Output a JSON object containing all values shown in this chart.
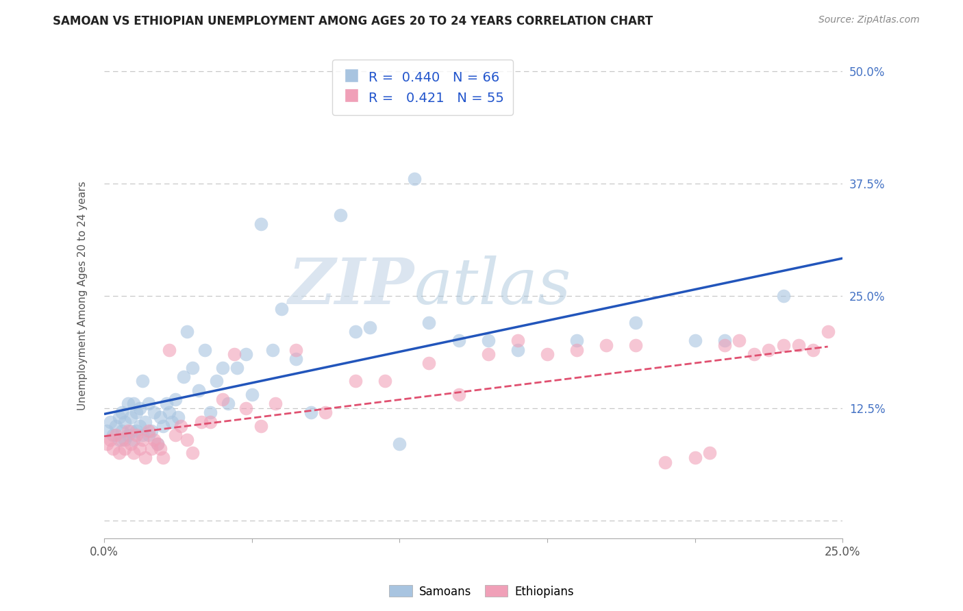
{
  "title": "SAMOAN VS ETHIOPIAN UNEMPLOYMENT AMONG AGES 20 TO 24 YEARS CORRELATION CHART",
  "source": "Source: ZipAtlas.com",
  "ylabel": "Unemployment Among Ages 20 to 24 years",
  "legend_samoans_R": "0.440",
  "legend_samoans_N": "66",
  "legend_ethiopians_R": "0.421",
  "legend_ethiopians_N": "55",
  "samoan_color": "#a8c4e0",
  "ethiopian_color": "#f0a0b8",
  "samoan_line_color": "#2255bb",
  "ethiopian_line_color": "#e05070",
  "background_color": "#ffffff",
  "grid_color": "#c8c8c8",
  "watermark_zip": "ZIP",
  "watermark_atlas": "atlas",
  "samoan_x": [
    0.001,
    0.002,
    0.003,
    0.004,
    0.005,
    0.005,
    0.006,
    0.006,
    0.007,
    0.007,
    0.008,
    0.008,
    0.009,
    0.009,
    0.01,
    0.01,
    0.011,
    0.011,
    0.012,
    0.012,
    0.013,
    0.013,
    0.014,
    0.015,
    0.015,
    0.016,
    0.017,
    0.018,
    0.019,
    0.02,
    0.021,
    0.022,
    0.023,
    0.024,
    0.025,
    0.027,
    0.028,
    0.03,
    0.032,
    0.034,
    0.036,
    0.038,
    0.04,
    0.042,
    0.045,
    0.048,
    0.05,
    0.053,
    0.057,
    0.06,
    0.065,
    0.07,
    0.08,
    0.085,
    0.09,
    0.1,
    0.105,
    0.11,
    0.12,
    0.13,
    0.14,
    0.16,
    0.18,
    0.2,
    0.21,
    0.23
  ],
  "samoan_y": [
    0.1,
    0.11,
    0.095,
    0.105,
    0.09,
    0.115,
    0.1,
    0.12,
    0.09,
    0.11,
    0.095,
    0.13,
    0.1,
    0.115,
    0.09,
    0.13,
    0.1,
    0.12,
    0.105,
    0.125,
    0.095,
    0.155,
    0.11,
    0.095,
    0.13,
    0.1,
    0.12,
    0.085,
    0.115,
    0.105,
    0.13,
    0.12,
    0.11,
    0.135,
    0.115,
    0.16,
    0.21,
    0.17,
    0.145,
    0.19,
    0.12,
    0.155,
    0.17,
    0.13,
    0.17,
    0.185,
    0.14,
    0.33,
    0.19,
    0.235,
    0.18,
    0.12,
    0.34,
    0.21,
    0.215,
    0.085,
    0.38,
    0.22,
    0.2,
    0.2,
    0.19,
    0.2,
    0.22,
    0.2,
    0.2,
    0.25
  ],
  "ethiopian_x": [
    0.001,
    0.002,
    0.003,
    0.004,
    0.005,
    0.006,
    0.007,
    0.008,
    0.009,
    0.01,
    0.011,
    0.012,
    0.013,
    0.014,
    0.015,
    0.016,
    0.017,
    0.018,
    0.019,
    0.02,
    0.022,
    0.024,
    0.026,
    0.028,
    0.03,
    0.033,
    0.036,
    0.04,
    0.044,
    0.048,
    0.053,
    0.058,
    0.065,
    0.075,
    0.085,
    0.095,
    0.11,
    0.12,
    0.13,
    0.14,
    0.15,
    0.16,
    0.17,
    0.18,
    0.19,
    0.2,
    0.205,
    0.21,
    0.215,
    0.22,
    0.225,
    0.23,
    0.235,
    0.24,
    0.245
  ],
  "ethiopian_y": [
    0.085,
    0.09,
    0.08,
    0.095,
    0.075,
    0.09,
    0.08,
    0.1,
    0.085,
    0.075,
    0.095,
    0.08,
    0.09,
    0.07,
    0.1,
    0.08,
    0.09,
    0.085,
    0.08,
    0.07,
    0.19,
    0.095,
    0.105,
    0.09,
    0.075,
    0.11,
    0.11,
    0.135,
    0.185,
    0.125,
    0.105,
    0.13,
    0.19,
    0.12,
    0.155,
    0.155,
    0.175,
    0.14,
    0.185,
    0.2,
    0.185,
    0.19,
    0.195,
    0.195,
    0.065,
    0.07,
    0.075,
    0.195,
    0.2,
    0.185,
    0.19,
    0.195,
    0.195,
    0.19,
    0.21
  ],
  "xlim": [
    0.0,
    0.25
  ],
  "ylim": [
    -0.02,
    0.52
  ],
  "ytick_vals": [
    0.0,
    0.125,
    0.25,
    0.375,
    0.5
  ],
  "ytick_labels": [
    "",
    "12.5%",
    "25.0%",
    "37.5%",
    "50.0%"
  ]
}
